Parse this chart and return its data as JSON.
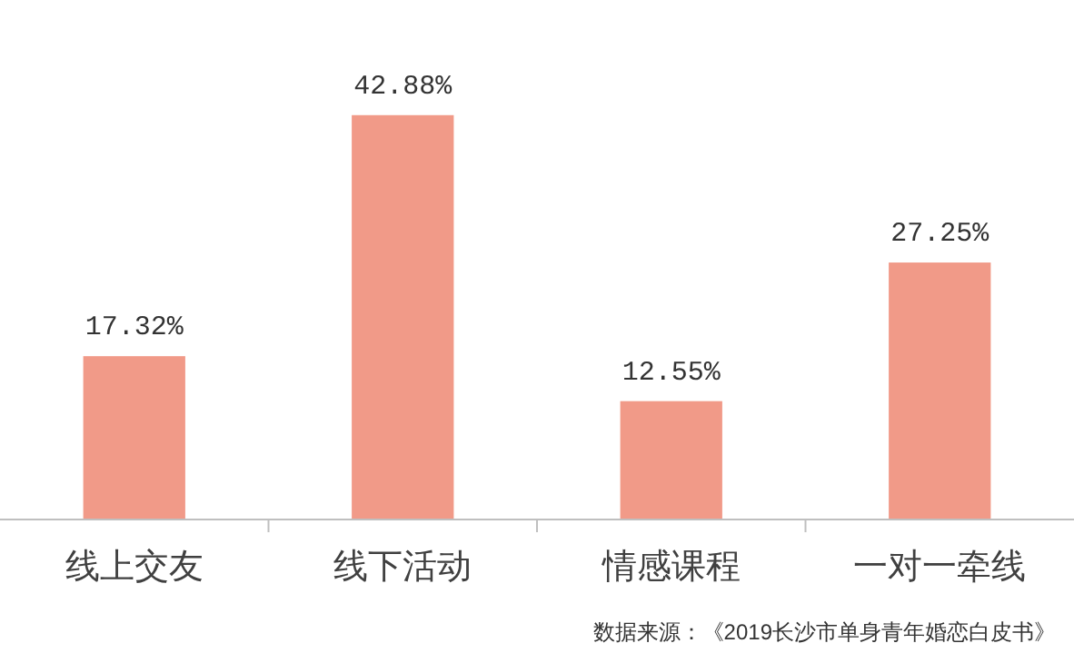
{
  "chart_data": {
    "type": "bar",
    "categories": [
      "线上交友",
      "线下活动",
      "情感课程",
      "一对一牵线"
    ],
    "values": [
      17.32,
      42.88,
      12.55,
      27.25
    ],
    "value_labels": [
      "17.32%",
      "42.88%",
      "12.55%",
      "27.25%"
    ],
    "color": "#f19a88",
    "annotations": [
      "数据来源：《2019长沙市单身青年婚恋白皮书》"
    ]
  }
}
